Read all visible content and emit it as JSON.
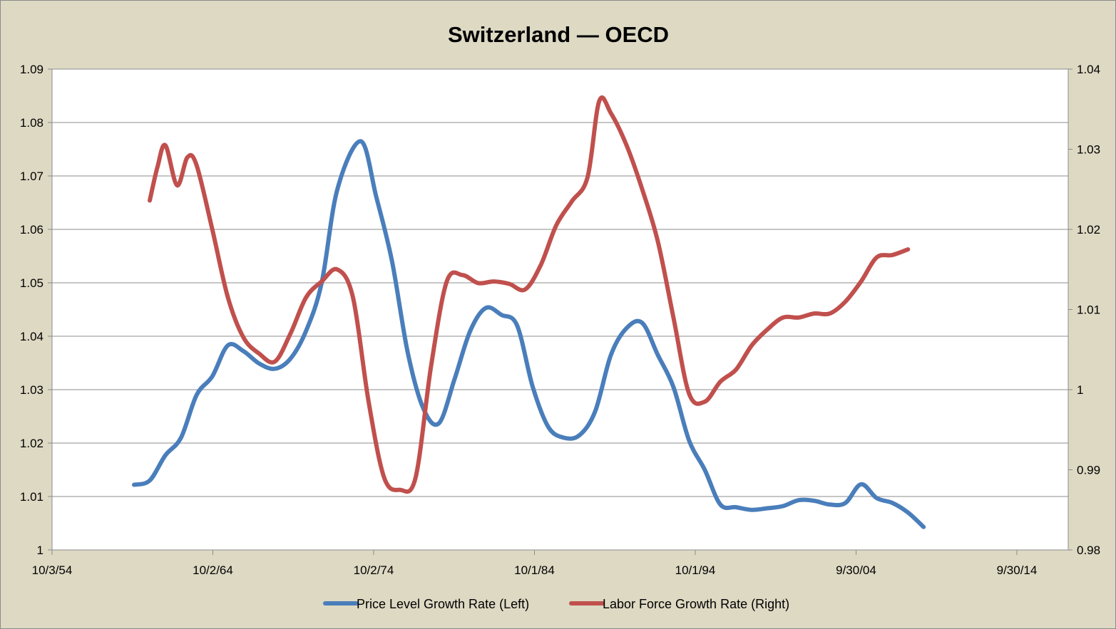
{
  "chart_data": {
    "type": "line",
    "title": "Switzerland — OECD",
    "background_color": "#ddd9c3",
    "plot_background_color": "#ffffff",
    "grid": true,
    "legend_position": "bottom",
    "x_axis": {
      "type": "date",
      "range": [
        "1954-10-03",
        "2019-09-30"
      ],
      "tick_labels": [
        "10/3/54",
        "10/2/64",
        "10/2/74",
        "10/1/84",
        "10/1/94",
        "9/30/04",
        "9/30/14"
      ]
    },
    "y_left": {
      "range": [
        1.0,
        1.09
      ],
      "tick_labels": [
        "1",
        "1.01",
        "1.02",
        "1.03",
        "1.04",
        "1.05",
        "1.06",
        "1.07",
        "1.08",
        "1.09"
      ]
    },
    "y_right": {
      "range": [
        0.98,
        1.04
      ],
      "tick_labels": [
        "0.98",
        "0.99",
        "1",
        "1.01",
        "1.02",
        "1.03",
        "1.04"
      ]
    },
    "series": [
      {
        "name": "Price Level Growth Rate (Left)",
        "axis": "left",
        "color": "#4a7ebb",
        "points": [
          [
            "1960-01-01",
            1.0122
          ],
          [
            "1961-01-01",
            1.013
          ],
          [
            "1962-01-01",
            1.0177
          ],
          [
            "1963-01-01",
            1.021
          ],
          [
            "1964-01-01",
            1.029
          ],
          [
            "1965-01-01",
            1.0325
          ],
          [
            "1966-01-01",
            1.0383
          ],
          [
            "1967-01-01",
            1.0372
          ],
          [
            "1968-01-01",
            1.0349
          ],
          [
            "1969-01-01",
            1.0339
          ],
          [
            "1970-01-01",
            1.0358
          ],
          [
            "1971-01-01",
            1.041
          ],
          [
            "1972-01-01",
            1.05
          ],
          [
            "1973-01-01",
            1.0675
          ],
          [
            "1974-07-01",
            1.0765
          ],
          [
            "1975-07-01",
            1.066
          ],
          [
            "1976-07-01",
            1.054
          ],
          [
            "1977-07-01",
            1.037
          ],
          [
            "1978-07-01",
            1.0265
          ],
          [
            "1979-07-01",
            1.0237
          ],
          [
            "1980-07-01",
            1.032
          ],
          [
            "1981-07-01",
            1.041
          ],
          [
            "1982-07-01",
            1.0453
          ],
          [
            "1983-07-01",
            1.044
          ],
          [
            "1984-07-01",
            1.042
          ],
          [
            "1985-07-01",
            1.0305
          ],
          [
            "1986-07-01",
            1.023
          ],
          [
            "1987-07-01",
            1.021
          ],
          [
            "1988-07-01",
            1.0215
          ],
          [
            "1989-07-01",
            1.026
          ],
          [
            "1990-07-01",
            1.0365
          ],
          [
            "1991-07-01",
            1.0415
          ],
          [
            "1992-07-01",
            1.0425
          ],
          [
            "1993-07-01",
            1.0365
          ],
          [
            "1994-07-01",
            1.0305
          ],
          [
            "1995-07-01",
            1.0205
          ],
          [
            "1996-07-01",
            1.015
          ],
          [
            "1997-07-01",
            1.0085
          ],
          [
            "1998-07-01",
            1.008
          ],
          [
            "1999-07-01",
            1.0075
          ],
          [
            "2000-07-01",
            1.0078
          ],
          [
            "2001-07-01",
            1.0082
          ],
          [
            "2002-07-01",
            1.0093
          ],
          [
            "2003-07-01",
            1.0092
          ],
          [
            "2004-07-01",
            1.0085
          ],
          [
            "2005-07-01",
            1.0088
          ],
          [
            "2006-07-01",
            1.0123
          ],
          [
            "2007-07-01",
            1.0097
          ],
          [
            "2008-07-01",
            1.0088
          ],
          [
            "2009-07-01",
            1.007
          ],
          [
            "2010-07-01",
            1.0043
          ]
        ]
      },
      {
        "name": "Labor Force Growth Rate (Right)",
        "axis": "right",
        "color": "#c0504d",
        "points": [
          [
            "1961-01-01",
            1.0236
          ],
          [
            "1961-07-01",
            1.0278
          ],
          [
            "1962-01-01",
            1.0305
          ],
          [
            "1962-10-01",
            1.0255
          ],
          [
            "1963-06-01",
            1.029
          ],
          [
            "1964-01-01",
            1.028
          ],
          [
            "1965-01-01",
            1.02
          ],
          [
            "1966-01-01",
            1.0115
          ],
          [
            "1967-01-01",
            1.0065
          ],
          [
            "1968-01-01",
            1.0045
          ],
          [
            "1969-01-01",
            1.0035
          ],
          [
            "1970-01-01",
            1.007
          ],
          [
            "1971-01-01",
            1.0115
          ],
          [
            "1972-01-01",
            1.0135
          ],
          [
            "1973-01-01",
            1.015
          ],
          [
            "1974-01-01",
            1.0115
          ],
          [
            "1975-01-01",
            0.9985
          ],
          [
            "1976-01-01",
            0.989
          ],
          [
            "1977-01-01",
            0.9875
          ],
          [
            "1978-01-01",
            0.989
          ],
          [
            "1979-01-01",
            1.003
          ],
          [
            "1980-01-01",
            1.0135
          ],
          [
            "1981-01-01",
            1.0143
          ],
          [
            "1982-01-01",
            1.0133
          ],
          [
            "1983-01-01",
            1.0135
          ],
          [
            "1984-01-01",
            1.0132
          ],
          [
            "1985-01-01",
            1.0125
          ],
          [
            "1986-01-01",
            1.0155
          ],
          [
            "1987-01-01",
            1.0205
          ],
          [
            "1988-01-01",
            1.0235
          ],
          [
            "1989-01-01",
            1.0265
          ],
          [
            "1989-10-01",
            1.036
          ],
          [
            "1990-07-01",
            1.0345
          ],
          [
            "1991-07-01",
            1.0305
          ],
          [
            "1992-07-01",
            1.025
          ],
          [
            "1993-07-01",
            1.0185
          ],
          [
            "1994-07-01",
            1.009
          ],
          [
            "1995-07-01",
            0.9995
          ],
          [
            "1996-07-01",
            0.9985
          ],
          [
            "1997-07-01",
            1.001
          ],
          [
            "1998-07-01",
            1.0025
          ],
          [
            "1999-07-01",
            1.0055
          ],
          [
            "2000-07-01",
            1.0075
          ],
          [
            "2001-07-01",
            1.009
          ],
          [
            "2002-07-01",
            1.009
          ],
          [
            "2003-07-01",
            1.0095
          ],
          [
            "2004-07-01",
            1.0095
          ],
          [
            "2005-07-01",
            1.011
          ],
          [
            "2006-07-01",
            1.0135
          ],
          [
            "2007-07-01",
            1.0165
          ],
          [
            "2008-07-01",
            1.0168
          ],
          [
            "2009-07-01",
            1.0175
          ]
        ]
      }
    ]
  }
}
